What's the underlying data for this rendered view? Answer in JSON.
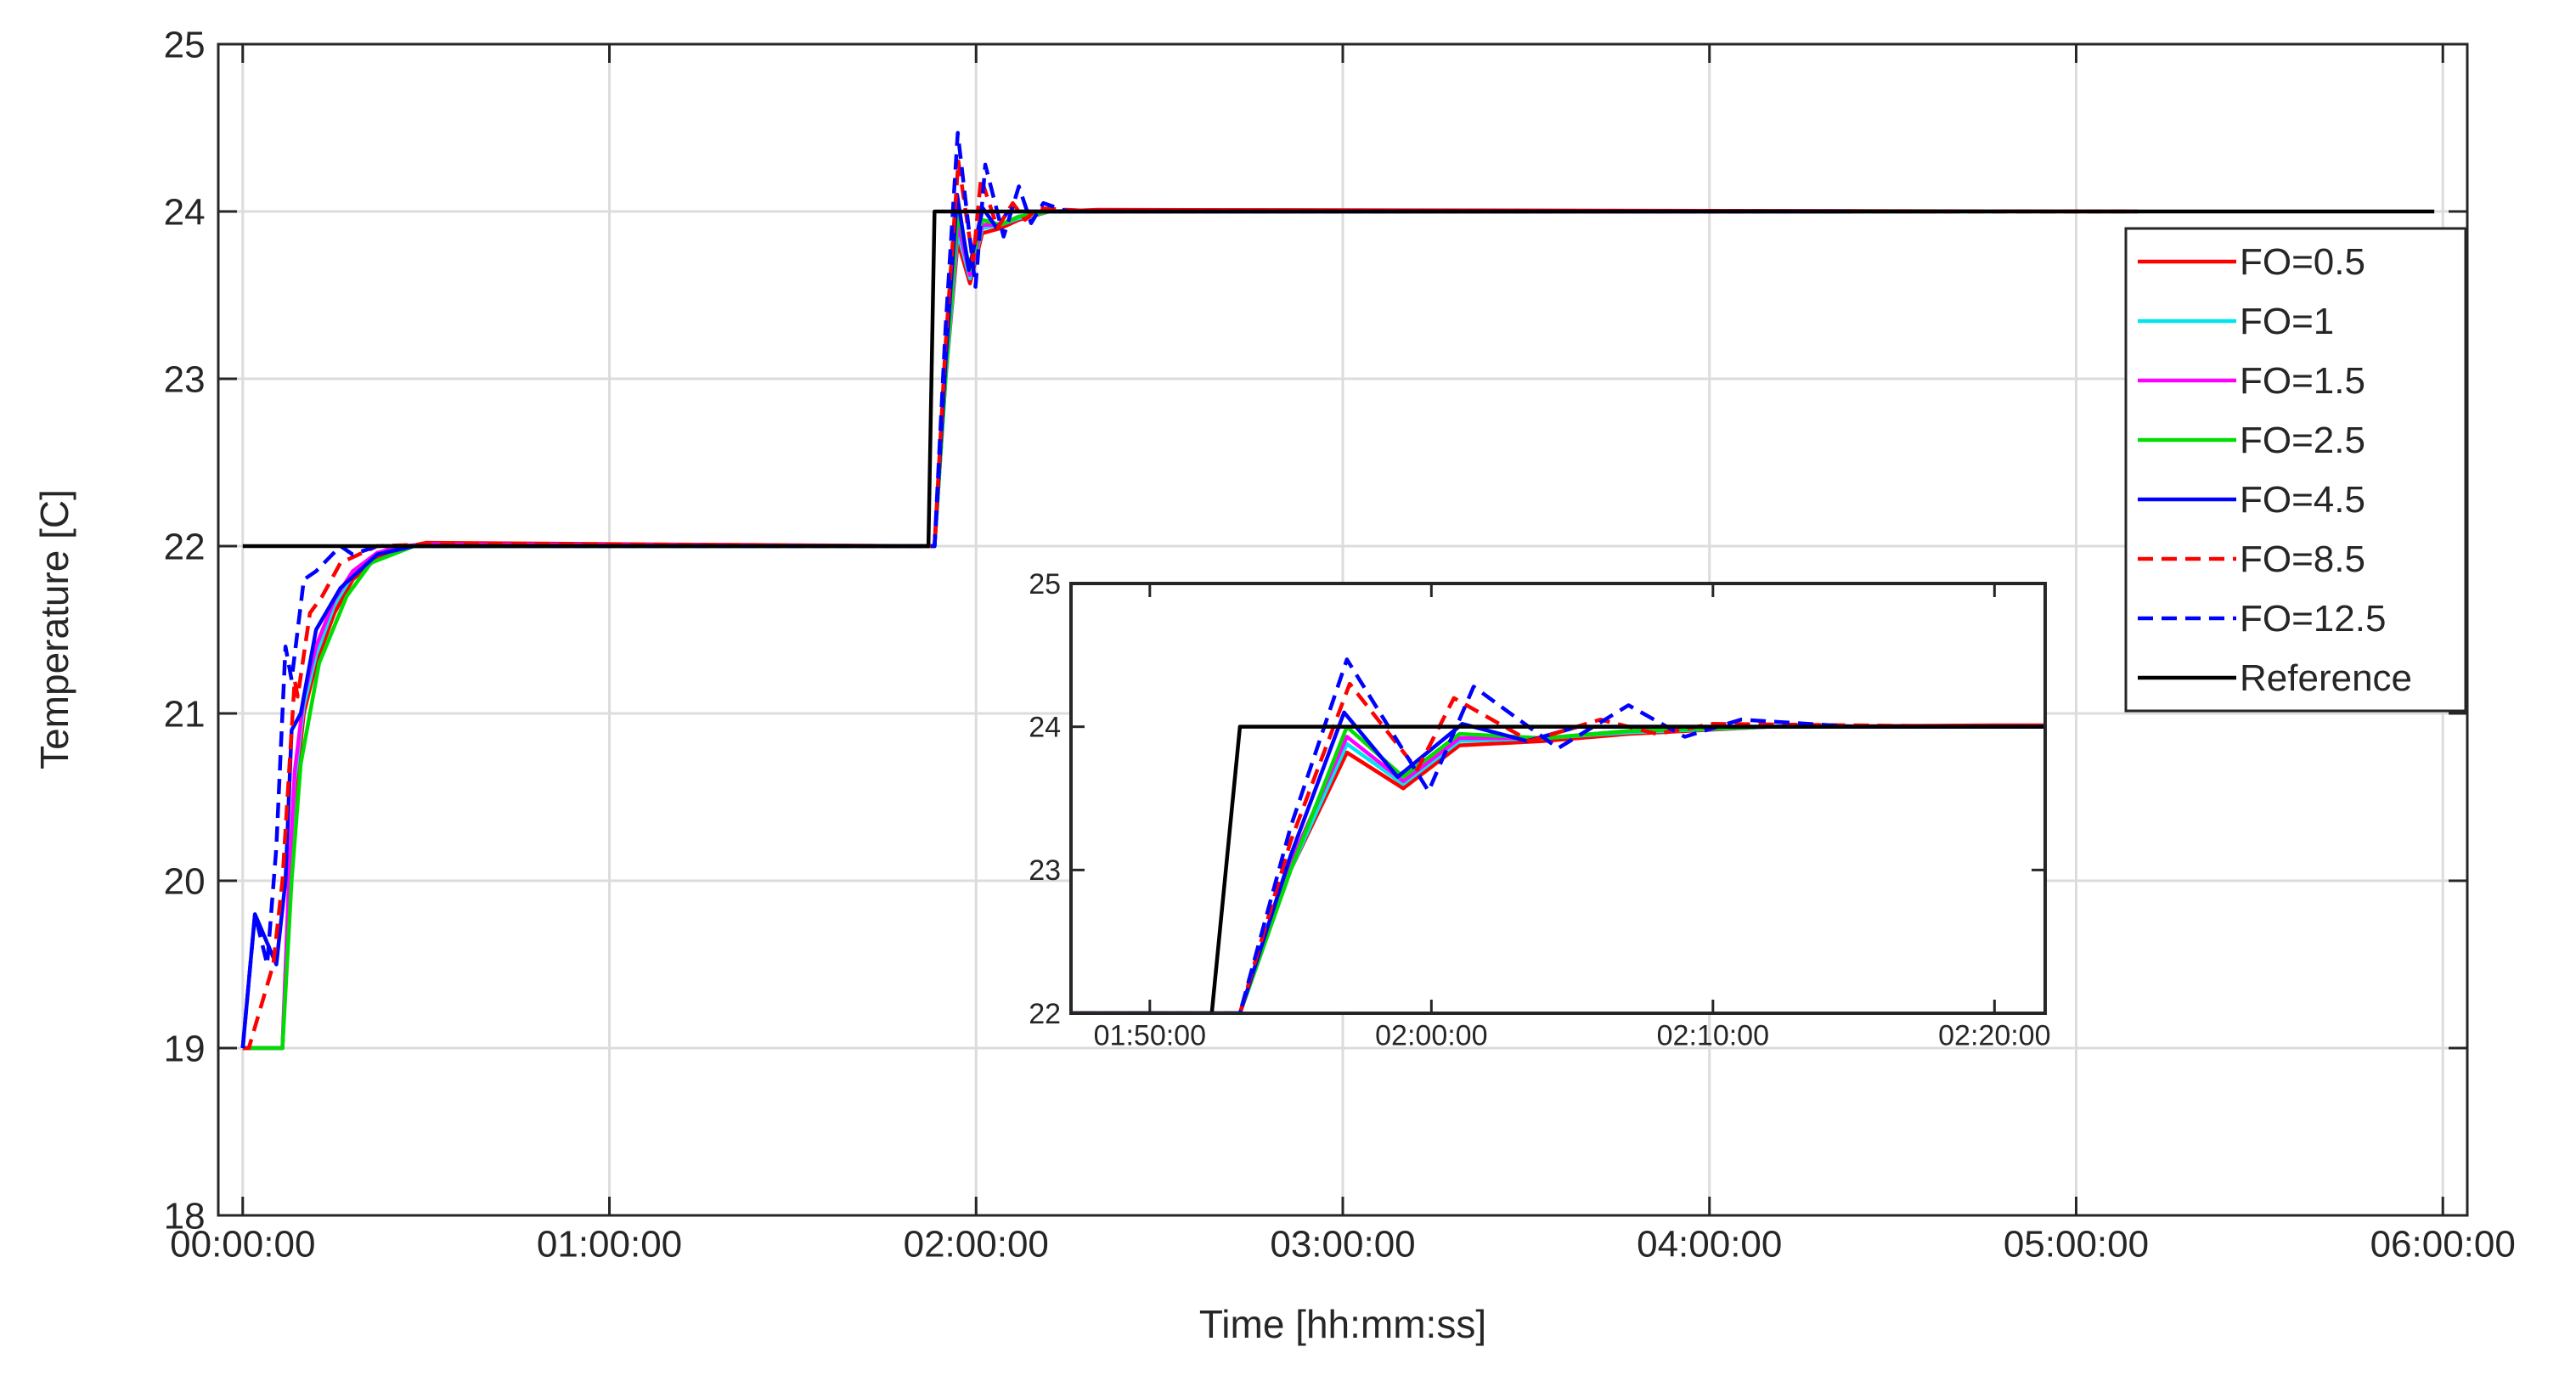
{
  "chart_data": [
    {
      "type": "line",
      "xlabel": "Time [hh:mm:ss]",
      "ylabel": "Temperature [C]",
      "xlim": [
        -4,
        364
      ],
      "ylim": [
        18,
        25
      ],
      "xticks": [
        {
          "value": 0,
          "label": "00:00:00"
        },
        {
          "value": 60,
          "label": "01:00:00"
        },
        {
          "value": 120,
          "label": "02:00:00"
        },
        {
          "value": 180,
          "label": "03:00:00"
        },
        {
          "value": 240,
          "label": "04:00:00"
        },
        {
          "value": 300,
          "label": "05:00:00"
        },
        {
          "value": 360,
          "label": "06:00:00"
        }
      ],
      "yticks": [
        18,
        19,
        20,
        21,
        22,
        23,
        24,
        25
      ],
      "grid": true,
      "legend": "upper right",
      "series": [
        {
          "name": "FO=0.5",
          "color": "#ff0000",
          "linestyle": "solid",
          "x": [
            0,
            1,
            6.5,
            7.5,
            8.5,
            10,
            12,
            15,
            18,
            22,
            26,
            30,
            111,
            112,
            113.2,
            115,
            117,
            119,
            121,
            124,
            127,
            132,
            140,
            310
          ],
          "values": [
            19,
            19,
            19,
            19.8,
            20.5,
            21,
            21.3,
            21.6,
            21.8,
            21.93,
            21.99,
            22.02,
            22,
            22,
            22,
            23,
            23.82,
            23.57,
            23.87,
            23.9,
            23.95,
            24,
            24.01,
            24
          ]
        },
        {
          "name": "FO=1",
          "color": "#00e5ee",
          "linestyle": "solid",
          "x": [
            0,
            1,
            6.5,
            7.5,
            8.5,
            10,
            12,
            15,
            18,
            22,
            26,
            30,
            111,
            113.2,
            115,
            117,
            119,
            121,
            124,
            127,
            132,
            140,
            288
          ],
          "values": [
            19,
            19,
            19,
            19.9,
            20.6,
            21.05,
            21.35,
            21.65,
            21.83,
            21.95,
            22,
            22.01,
            22,
            22,
            23,
            23.88,
            23.6,
            23.9,
            23.92,
            23.96,
            24,
            24,
            24
          ]
        },
        {
          "name": "FO=1.5",
          "color": "#ff00ff",
          "linestyle": "solid",
          "x": [
            0,
            1,
            6.5,
            7.5,
            8.5,
            10,
            12,
            15,
            18,
            22,
            26,
            30,
            111,
            113.2,
            115,
            117,
            119,
            121,
            124,
            127,
            132,
            140,
            280
          ],
          "values": [
            19,
            19,
            19,
            19.95,
            20.65,
            21.1,
            21.4,
            21.68,
            21.85,
            21.96,
            22,
            22.01,
            22,
            22,
            23.05,
            23.93,
            23.62,
            23.92,
            23.92,
            23.97,
            24,
            24,
            24
          ]
        },
        {
          "name": "FO=2.5",
          "color": "#00dd00",
          "linestyle": "solid",
          "x": [
            0,
            1,
            6.5,
            8,
            9.5,
            12.5,
            17,
            21,
            28,
            111,
            113.2,
            115,
            117,
            119,
            121,
            124,
            127,
            132,
            278
          ],
          "values": [
            19,
            19,
            19,
            20,
            20.7,
            21.3,
            21.7,
            21.9,
            22,
            22,
            22,
            23,
            24,
            23.65,
            23.95,
            23.92,
            23.97,
            24,
            24
          ]
        },
        {
          "name": "FO=4.5",
          "color": "#0000ff",
          "linestyle": "solid",
          "x": [
            0,
            2,
            5.5,
            7,
            8,
            9.5,
            12,
            16,
            22,
            28,
            111,
            113.2,
            115,
            116.9,
            118.8,
            121.1,
            123.4,
            125.2,
            132,
            263
          ],
          "values": [
            19,
            19.8,
            19.5,
            20,
            20.9,
            21,
            21.5,
            21.75,
            21.95,
            22,
            22,
            22,
            23.1,
            24.1,
            23.65,
            24.02,
            23.9,
            24,
            24,
            24
          ]
        },
        {
          "name": "FO=8.5",
          "color": "#ff0000",
          "linestyle": "dashed",
          "x": [
            0,
            1,
            5,
            6.5,
            8.5,
            9,
            11,
            13,
            16,
            22,
            30,
            111,
            113.2,
            115,
            117.1,
            119.5,
            120.8,
            123.5,
            126,
            128,
            130,
            140,
            310
          ],
          "values": [
            19,
            19,
            19.5,
            20,
            21.2,
            21.1,
            21.6,
            21.7,
            21.9,
            22,
            22.01,
            22,
            22,
            23.2,
            24.3,
            23.7,
            24.2,
            23.9,
            24.05,
            23.95,
            24.02,
            24,
            24
          ]
        },
        {
          "name": "FO=12.5",
          "color": "#0000ff",
          "linestyle": "dashed",
          "x": [
            0,
            2,
            4,
            5.5,
            7,
            8,
            10,
            12,
            16,
            18,
            22,
            111,
            113.2,
            115,
            117,
            119.9,
            121.5,
            124.5,
            127,
            129,
            131,
            135,
            263
          ],
          "values": [
            19,
            19.8,
            19.5,
            20.2,
            21.4,
            21.2,
            21.8,
            21.85,
            22,
            21.95,
            22,
            22,
            22,
            23.3,
            24.47,
            23.55,
            24.28,
            23.85,
            24.15,
            23.93,
            24.05,
            24,
            24
          ]
        },
        {
          "name": "Reference",
          "color": "#000000",
          "linestyle": "solid",
          "x": [
            0,
            112.2,
            113.2,
            358.6
          ],
          "values": [
            22,
            22,
            24,
            24
          ]
        }
      ]
    },
    {
      "type": "inset",
      "xlim": [
        107.2,
        141.8
      ],
      "ylim": [
        22,
        25
      ],
      "xticks": [
        {
          "value": 110,
          "label": "01:50:00"
        },
        {
          "value": 120,
          "label": "02:00:00"
        },
        {
          "value": 130,
          "label": "02:10:00"
        },
        {
          "value": 140,
          "label": "02:20:00"
        }
      ],
      "yticks": [
        22,
        23,
        24,
        25
      ],
      "grid": false
    }
  ]
}
